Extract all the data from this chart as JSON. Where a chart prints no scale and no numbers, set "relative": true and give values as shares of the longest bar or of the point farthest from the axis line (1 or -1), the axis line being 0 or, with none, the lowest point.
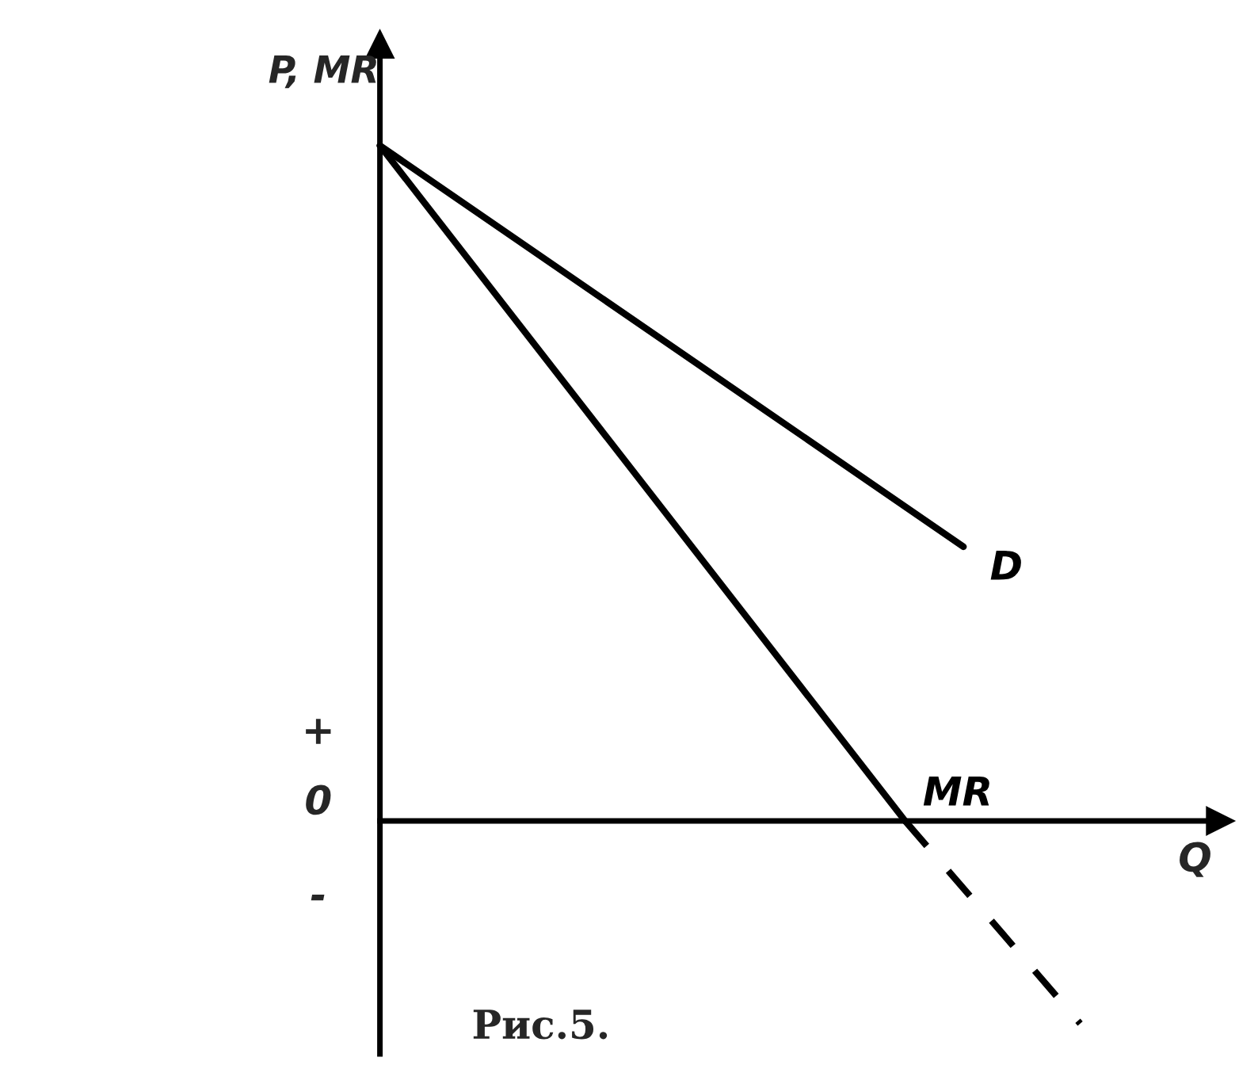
{
  "chart_data": {
    "type": "line",
    "relative": true,
    "xlabel": "Q",
    "ylabel": "P, MR",
    "categories": [
      null,
      null,
      null,
      null,
      null,
      null,
      null,
      null,
      null,
      null,
      null,
      null,
      null
    ],
    "series": [
      {
        "name": "D",
        "color": "#000000",
        "values": [
          1,
          null,
          null,
          null,
          null,
          null,
          null,
          null,
          null,
          null,
          0.406,
          null,
          null
        ]
      },
      {
        "name": "MR",
        "color": "#000000",
        "values": [
          1,
          null,
          null,
          null,
          null,
          null,
          null,
          null,
          null,
          0,
          null,
          null,
          null
        ]
      },
      {
        "color": "#000000",
        "line_style": "dashed",
        "values": [
          null,
          null,
          null,
          null,
          null,
          null,
          null,
          null,
          null,
          0,
          null,
          null,
          -0.3
        ]
      }
    ],
    "annotations": [
      "+",
      "0",
      "-",
      "Рис.5."
    ]
  }
}
